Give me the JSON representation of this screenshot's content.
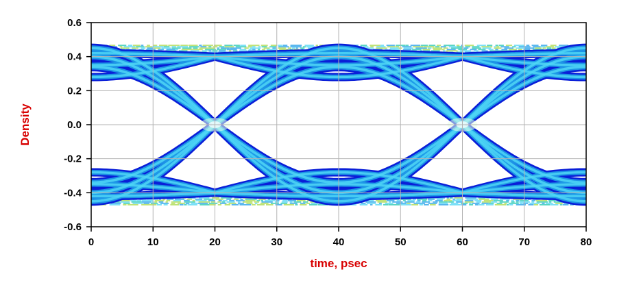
{
  "chart_data": {
    "type": "eye-diagram",
    "title": "",
    "xlabel": "time, psec",
    "ylabel": "Density",
    "xlim": [
      0,
      80
    ],
    "ylim": [
      -0.6,
      0.6
    ],
    "x_ticks": [
      0,
      10,
      20,
      30,
      40,
      50,
      60,
      70,
      80
    ],
    "y_ticks": [
      -0.6,
      -0.4,
      -0.2,
      0.0,
      0.2,
      0.4,
      0.6
    ],
    "x_tick_labels": [
      "0",
      "10",
      "20",
      "30",
      "40",
      "50",
      "60",
      "70",
      "80"
    ],
    "y_tick_labels": [
      "-0.6",
      "-0.4",
      "-0.2",
      "0.0",
      "0.2",
      "0.4",
      "0.6"
    ],
    "grid": true,
    "legend": "none",
    "unit_interval_ps": 40,
    "eye_crossings_x": [
      20,
      60
    ],
    "eye_centers_x": [
      0,
      40,
      80
    ],
    "logic_levels": {
      "high": 0.4,
      "low": -0.4
    },
    "eye_opening_inner": {
      "top": 0.15,
      "bottom": -0.15
    },
    "noise_band": [
      -0.47,
      0.47
    ],
    "colors": {
      "dense": "#0a1fd8",
      "medium": "#1f9ee8",
      "sparse": "#4fd6f4",
      "peak": "#e8ffe6",
      "noise_low": "#22c7b0",
      "noise_mid": "#a8d84a",
      "grid": "#b3b3b3",
      "axis_label": "#d80000"
    }
  }
}
